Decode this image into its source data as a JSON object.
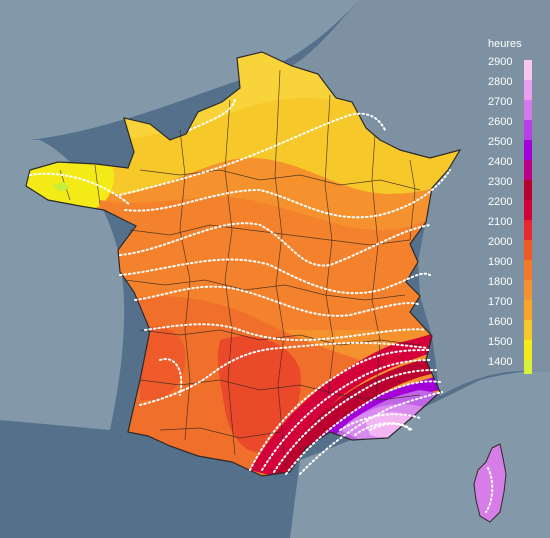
{
  "legend": {
    "title": "heures",
    "ticks": [
      "2900",
      "2800",
      "2700",
      "2600",
      "2500",
      "2400",
      "2300",
      "2200",
      "2100",
      "2000",
      "1900",
      "1800",
      "1700",
      "1600",
      "1500",
      "1400"
    ],
    "colors": [
      "#f9c6f2",
      "#e89ff0",
      "#d57aeb",
      "#b93ee6",
      "#a300d8",
      "#bb0088",
      "#b9002f",
      "#d3003a",
      "#e8282c",
      "#ef5a27",
      "#f47a2a",
      "#f5922d",
      "#f8a52a",
      "#f6c82a",
      "#f4ea18",
      "#d8f23a"
    ]
  },
  "colors": {
    "sea": "#54708a",
    "sea_light": "#8398a8",
    "land_outside": "#6f879a",
    "border": "#2b2b2b",
    "contour": "#ffffff"
  }
}
